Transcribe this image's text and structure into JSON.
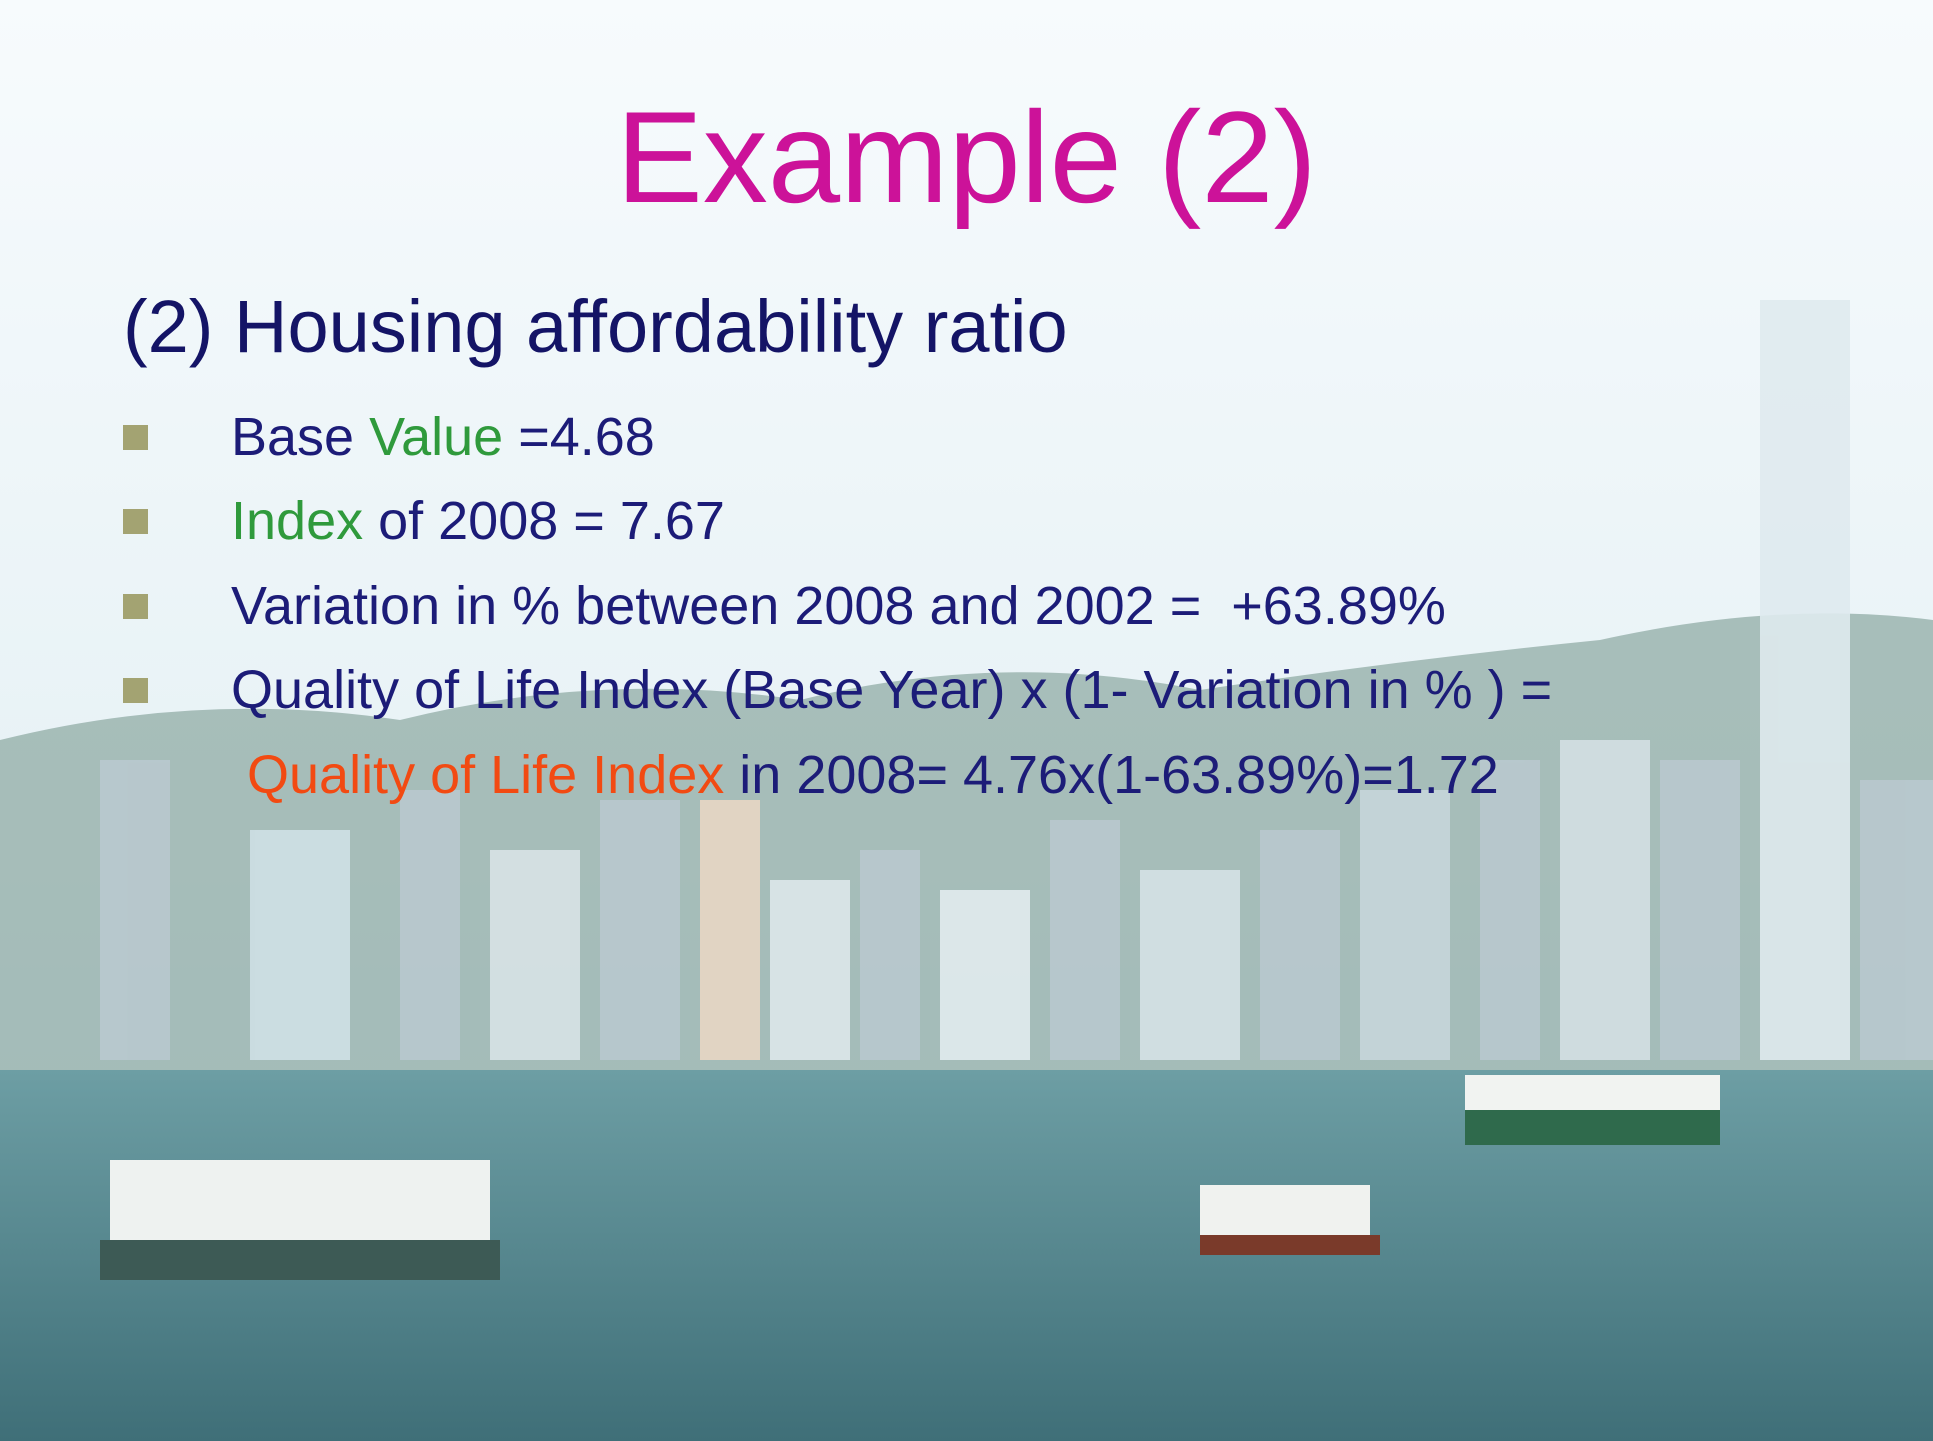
{
  "slide": {
    "title": "Example (2)",
    "subtitle": "(2) Housing affordability ratio",
    "bullets": [
      [
        "Base ",
        "Value",
        " =4.68"
      ],
      [
        "Index",
        " of 2008 = 7.67"
      ],
      [
        "Variation in % between 2008 and 2002 =  +63.89%"
      ],
      [
        "Quality of Life Index (Base Year) x (1- Variation in % ) ="
      ]
    ],
    "last_line": [
      "Quality of Life Index",
      " in 2008= 4.76x(1-63.89%)=1.72"
    ]
  }
}
